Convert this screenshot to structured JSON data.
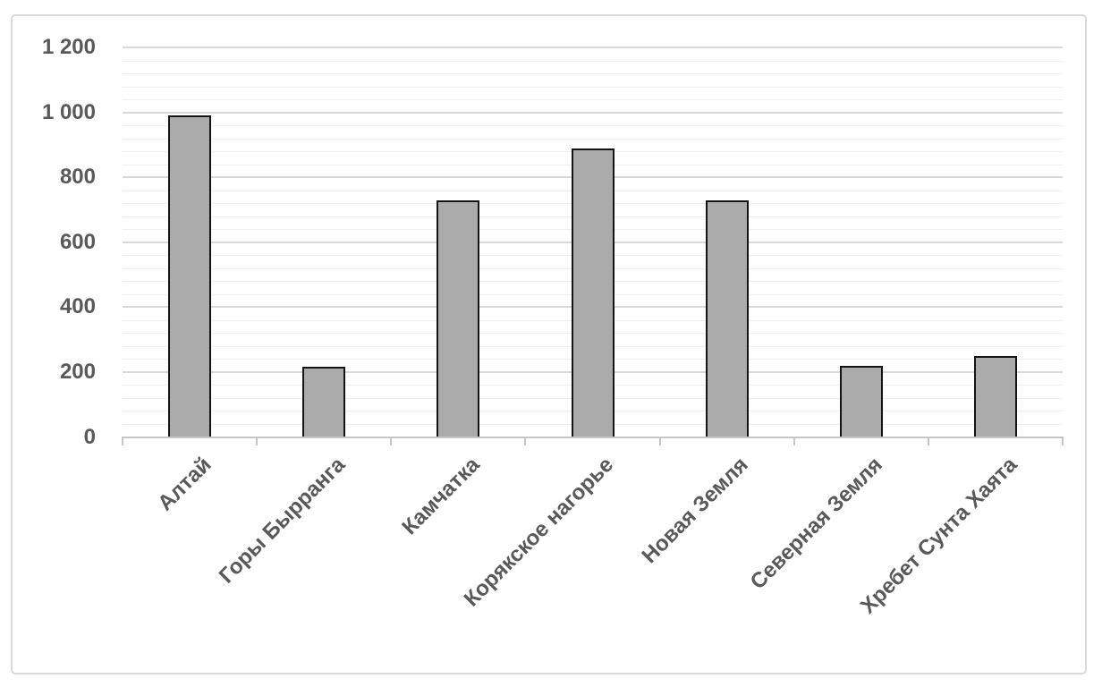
{
  "chart_data": {
    "type": "bar",
    "title": "",
    "categories": [
      "Алтай",
      "Горы Бырранга",
      "Камчатка",
      "Корякское нагорье",
      "Новая Земля",
      "Северная Земля",
      "Хребет Сунта Хаята"
    ],
    "values": [
      990,
      215,
      730,
      890,
      730,
      220,
      250
    ],
    "xlabel": "",
    "ylabel": "",
    "ylim": [
      0,
      1200
    ],
    "y_major_unit": 200,
    "y_minor_unit": 40,
    "y_tick_labels": [
      "0",
      "200",
      "400",
      "600",
      "800",
      "1 000",
      "1 200"
    ],
    "grid": "major and minor horizontal gridlines",
    "legend_position": "none",
    "colors": {
      "bar_fill": "#ababab",
      "bar_border": "#141414",
      "major_gridline": "#d9d9d9",
      "minor_gridline": "#f0f0f0",
      "axis_line": "#c6c6c6",
      "label_text": "#595959",
      "frame_border": "#d9d9d9",
      "background": "#ffffff"
    }
  }
}
